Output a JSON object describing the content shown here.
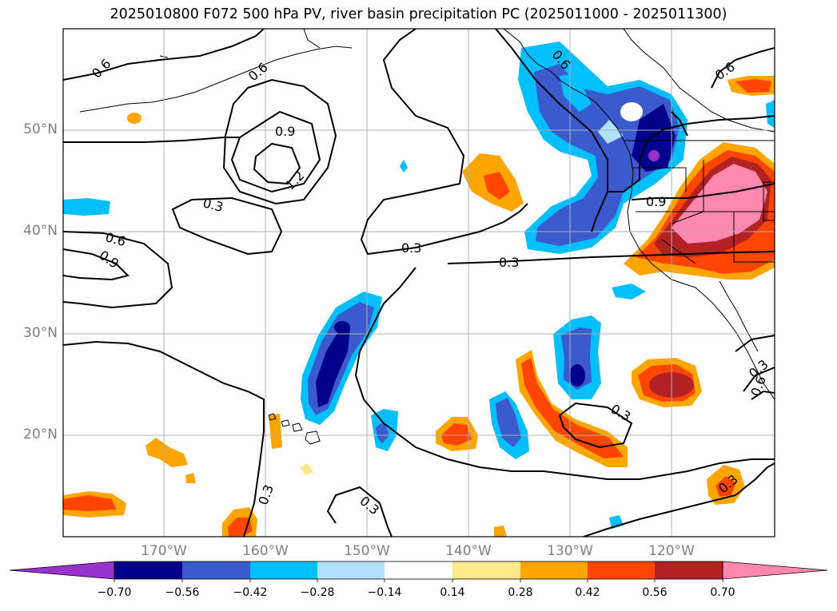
{
  "title": "2025010800 F072 500 hPa PV, river basin precipitation PC (2025011000 - 2025011300)",
  "map": {
    "lat_labels": [
      "50°N",
      "40°N",
      "30°N",
      "20°N"
    ],
    "lon_labels": [
      "170°W",
      "160°W",
      "150°W",
      "140°W",
      "130°W",
      "120°W"
    ],
    "contour_labels": [
      "0.6",
      "0.6",
      "0.9",
      "1.2",
      "0.3",
      "0.6",
      "0.9",
      "0.3",
      "0.3",
      "0.9",
      "0.6",
      "0.6",
      "0.3",
      "0.3",
      "0.3",
      "0.3",
      "0.6",
      "0.3"
    ]
  },
  "colorbar": {
    "ticks": [
      "−0.70",
      "−0.56",
      "−0.42",
      "−0.28",
      "−0.14",
      "0.14",
      "0.28",
      "0.42",
      "0.56",
      "0.70"
    ],
    "colors": [
      "#9932cc",
      "#00008b",
      "#3a5acd",
      "#00bfff",
      "#b0e2ff",
      "#ffffff",
      "#ffe98a",
      "#ffa500",
      "#ff4500",
      "#b22222",
      "#ff88b0"
    ]
  },
  "colors": {
    "land_outline": "#000000",
    "grid": "#b0b0b0",
    "contour": "#000000"
  }
}
